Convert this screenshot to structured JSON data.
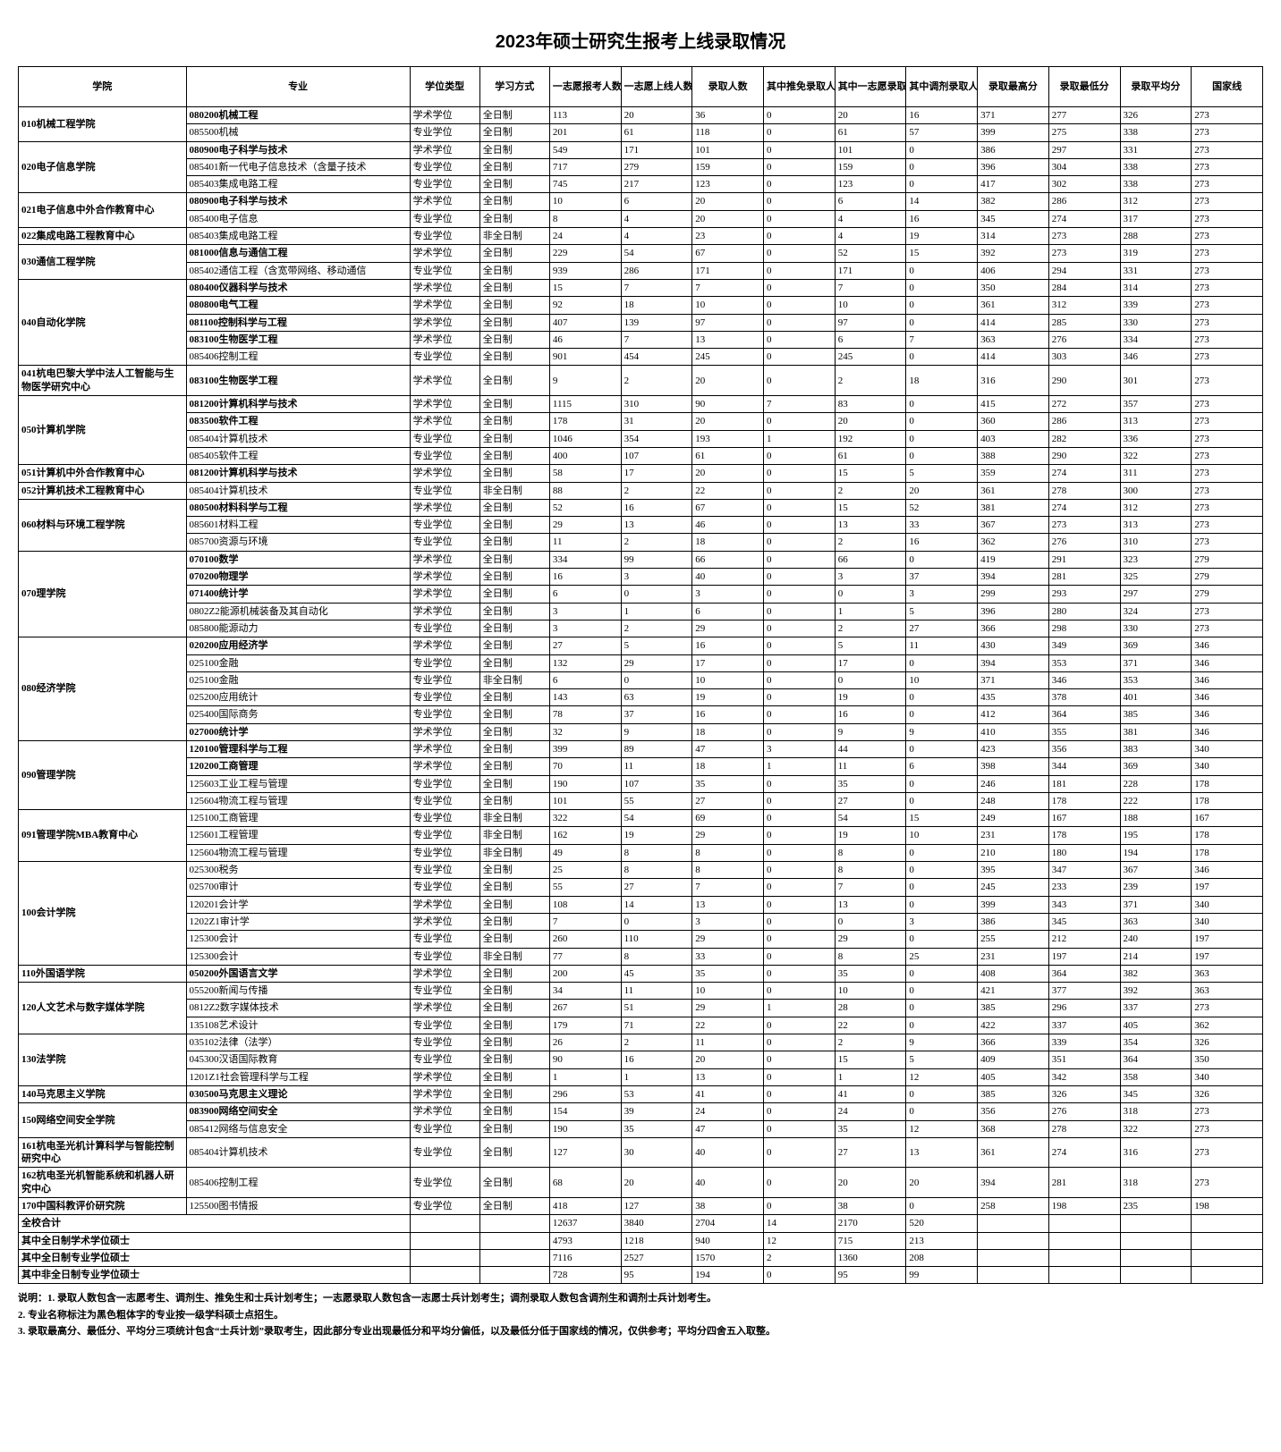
{
  "title": "2023年硕士研究生报考上线录取情况",
  "headers": [
    "学院",
    "专业",
    "学位类型",
    "学习方式",
    "一志愿报考人数",
    "一志愿上线人数",
    "录取人数",
    "其中推免录取人数",
    "其中一志愿录取人数",
    "其中调剂录取人数",
    "录取最高分",
    "录取最低分",
    "录取平均分",
    "国家线"
  ],
  "rows": [
    {
      "college": "010机械工程学院",
      "collegeBold": true,
      "rowspan": 2,
      "major": "080200机械工程",
      "majorBold": true,
      "cells": [
        "学术学位",
        "全日制",
        "113",
        "20",
        "36",
        "0",
        "20",
        "16",
        "371",
        "277",
        "326",
        "273"
      ]
    },
    {
      "major": "085500机械",
      "cells": [
        "专业学位",
        "全日制",
        "201",
        "61",
        "118",
        "0",
        "61",
        "57",
        "399",
        "275",
        "338",
        "273"
      ]
    },
    {
      "college": "020电子信息学院",
      "collegeBold": true,
      "rowspan": 3,
      "major": "080900电子科学与技术",
      "majorBold": true,
      "cells": [
        "学术学位",
        "全日制",
        "549",
        "171",
        "101",
        "0",
        "101",
        "0",
        "386",
        "297",
        "331",
        "273"
      ]
    },
    {
      "major": "085401新一代电子信息技术（含量子技术",
      "cells": [
        "专业学位",
        "全日制",
        "717",
        "279",
        "159",
        "0",
        "159",
        "0",
        "396",
        "304",
        "338",
        "273"
      ]
    },
    {
      "major": "085403集成电路工程",
      "cells": [
        "专业学位",
        "全日制",
        "745",
        "217",
        "123",
        "0",
        "123",
        "0",
        "417",
        "302",
        "338",
        "273"
      ]
    },
    {
      "college": "021电子信息中外合作教育中心",
      "collegeBold": true,
      "rowspan": 2,
      "major": "080900电子科学与技术",
      "majorBold": true,
      "cells": [
        "学术学位",
        "全日制",
        "10",
        "6",
        "20",
        "0",
        "6",
        "14",
        "382",
        "286",
        "312",
        "273"
      ]
    },
    {
      "major": "085400电子信息",
      "cells": [
        "专业学位",
        "全日制",
        "8",
        "4",
        "20",
        "0",
        "4",
        "16",
        "345",
        "274",
        "317",
        "273"
      ]
    },
    {
      "college": "022集成电路工程教育中心",
      "collegeBold": true,
      "rowspan": 1,
      "major": "085403集成电路工程",
      "cells": [
        "专业学位",
        "非全日制",
        "24",
        "4",
        "23",
        "0",
        "4",
        "19",
        "314",
        "273",
        "288",
        "273"
      ]
    },
    {
      "college": "030通信工程学院",
      "collegeBold": true,
      "rowspan": 2,
      "major": "081000信息与通信工程",
      "majorBold": true,
      "cells": [
        "学术学位",
        "全日制",
        "229",
        "54",
        "67",
        "0",
        "52",
        "15",
        "392",
        "273",
        "319",
        "273"
      ]
    },
    {
      "major": "085402通信工程（含宽带网络、移动通信",
      "cells": [
        "专业学位",
        "全日制",
        "939",
        "286",
        "171",
        "0",
        "171",
        "0",
        "406",
        "294",
        "331",
        "273"
      ]
    },
    {
      "college": "040自动化学院",
      "collegeBold": true,
      "rowspan": 5,
      "major": "080400仪器科学与技术",
      "majorBold": true,
      "cells": [
        "学术学位",
        "全日制",
        "15",
        "7",
        "7",
        "0",
        "7",
        "0",
        "350",
        "284",
        "314",
        "273"
      ]
    },
    {
      "major": "080800电气工程",
      "majorBold": true,
      "cells": [
        "学术学位",
        "全日制",
        "92",
        "18",
        "10",
        "0",
        "10",
        "0",
        "361",
        "312",
        "339",
        "273"
      ]
    },
    {
      "major": "081100控制科学与工程",
      "majorBold": true,
      "cells": [
        "学术学位",
        "全日制",
        "407",
        "139",
        "97",
        "0",
        "97",
        "0",
        "414",
        "285",
        "330",
        "273"
      ]
    },
    {
      "major": "083100生物医学工程",
      "majorBold": true,
      "cells": [
        "学术学位",
        "全日制",
        "46",
        "7",
        "13",
        "0",
        "6",
        "7",
        "363",
        "276",
        "334",
        "273"
      ]
    },
    {
      "major": "085406控制工程",
      "cells": [
        "专业学位",
        "全日制",
        "901",
        "454",
        "245",
        "0",
        "245",
        "0",
        "414",
        "303",
        "346",
        "273"
      ]
    },
    {
      "college": "041杭电巴黎大学中法人工智能与生物医学研究中心",
      "collegeBold": true,
      "rowspan": 1,
      "major": "083100生物医学工程",
      "majorBold": true,
      "cells": [
        "学术学位",
        "全日制",
        "9",
        "2",
        "20",
        "0",
        "2",
        "18",
        "316",
        "290",
        "301",
        "273"
      ]
    },
    {
      "college": "050计算机学院",
      "collegeBold": true,
      "rowspan": 4,
      "major": "081200计算机科学与技术",
      "majorBold": true,
      "cells": [
        "学术学位",
        "全日制",
        "1115",
        "310",
        "90",
        "7",
        "83",
        "0",
        "415",
        "272",
        "357",
        "273"
      ]
    },
    {
      "major": "083500软件工程",
      "majorBold": true,
      "cells": [
        "学术学位",
        "全日制",
        "178",
        "31",
        "20",
        "0",
        "20",
        "0",
        "360",
        "286",
        "313",
        "273"
      ]
    },
    {
      "major": "085404计算机技术",
      "cells": [
        "专业学位",
        "全日制",
        "1046",
        "354",
        "193",
        "1",
        "192",
        "0",
        "403",
        "282",
        "336",
        "273"
      ]
    },
    {
      "major": "085405软件工程",
      "cells": [
        "专业学位",
        "全日制",
        "400",
        "107",
        "61",
        "0",
        "61",
        "0",
        "388",
        "290",
        "322",
        "273"
      ]
    },
    {
      "college": "051计算机中外合作教育中心",
      "collegeBold": true,
      "rowspan": 1,
      "major": "081200计算机科学与技术",
      "majorBold": true,
      "cells": [
        "学术学位",
        "全日制",
        "58",
        "17",
        "20",
        "0",
        "15",
        "5",
        "359",
        "274",
        "311",
        "273"
      ]
    },
    {
      "college": "052计算机技术工程教育中心",
      "collegeBold": true,
      "rowspan": 1,
      "major": "085404计算机技术",
      "cells": [
        "专业学位",
        "非全日制",
        "88",
        "2",
        "22",
        "0",
        "2",
        "20",
        "361",
        "278",
        "300",
        "273"
      ]
    },
    {
      "college": "060材料与环境工程学院",
      "collegeBold": true,
      "rowspan": 3,
      "major": "080500材料科学与工程",
      "majorBold": true,
      "cells": [
        "学术学位",
        "全日制",
        "52",
        "16",
        "67",
        "0",
        "15",
        "52",
        "381",
        "274",
        "312",
        "273"
      ]
    },
    {
      "major": "085601材料工程",
      "cells": [
        "专业学位",
        "全日制",
        "29",
        "13",
        "46",
        "0",
        "13",
        "33",
        "367",
        "273",
        "313",
        "273"
      ]
    },
    {
      "major": "085700资源与环境",
      "cells": [
        "专业学位",
        "全日制",
        "11",
        "2",
        "18",
        "0",
        "2",
        "16",
        "362",
        "276",
        "310",
        "273"
      ]
    },
    {
      "college": "070理学院",
      "collegeBold": true,
      "rowspan": 5,
      "major": "070100数学",
      "majorBold": true,
      "cells": [
        "学术学位",
        "全日制",
        "334",
        "99",
        "66",
        "0",
        "66",
        "0",
        "419",
        "291",
        "323",
        "279"
      ]
    },
    {
      "major": "070200物理学",
      "majorBold": true,
      "cells": [
        "学术学位",
        "全日制",
        "16",
        "3",
        "40",
        "0",
        "3",
        "37",
        "394",
        "281",
        "325",
        "279"
      ]
    },
    {
      "major": "071400统计学",
      "majorBold": true,
      "cells": [
        "学术学位",
        "全日制",
        "6",
        "0",
        "3",
        "0",
        "0",
        "3",
        "299",
        "293",
        "297",
        "279"
      ]
    },
    {
      "major": "0802Z2能源机械装备及其自动化",
      "cells": [
        "学术学位",
        "全日制",
        "3",
        "1",
        "6",
        "0",
        "1",
        "5",
        "396",
        "280",
        "324",
        "273"
      ]
    },
    {
      "major": "085800能源动力",
      "cells": [
        "专业学位",
        "全日制",
        "3",
        "2",
        "29",
        "0",
        "2",
        "27",
        "366",
        "298",
        "330",
        "273"
      ]
    },
    {
      "college": "080经济学院",
      "collegeBold": true,
      "rowspan": 6,
      "major": "020200应用经济学",
      "majorBold": true,
      "cells": [
        "学术学位",
        "全日制",
        "27",
        "5",
        "16",
        "0",
        "5",
        "11",
        "430",
        "349",
        "369",
        "346"
      ]
    },
    {
      "major": "025100金融",
      "cells": [
        "专业学位",
        "全日制",
        "132",
        "29",
        "17",
        "0",
        "17",
        "0",
        "394",
        "353",
        "371",
        "346"
      ]
    },
    {
      "major": "025100金融",
      "cells": [
        "专业学位",
        "非全日制",
        "6",
        "0",
        "10",
        "0",
        "0",
        "10",
        "371",
        "346",
        "353",
        "346"
      ]
    },
    {
      "major": "025200应用统计",
      "cells": [
        "专业学位",
        "全日制",
        "143",
        "63",
        "19",
        "0",
        "19",
        "0",
        "435",
        "378",
        "401",
        "346"
      ]
    },
    {
      "major": "025400国际商务",
      "cells": [
        "专业学位",
        "全日制",
        "78",
        "37",
        "16",
        "0",
        "16",
        "0",
        "412",
        "364",
        "385",
        "346"
      ]
    },
    {
      "major": "027000统计学",
      "majorBold": true,
      "cells": [
        "学术学位",
        "全日制",
        "32",
        "9",
        "18",
        "0",
        "9",
        "9",
        "410",
        "355",
        "381",
        "346"
      ]
    },
    {
      "college": "090管理学院",
      "collegeBold": true,
      "rowspan": 4,
      "major": "120100管理科学与工程",
      "majorBold": true,
      "cells": [
        "学术学位",
        "全日制",
        "399",
        "89",
        "47",
        "3",
        "44",
        "0",
        "423",
        "356",
        "383",
        "340"
      ]
    },
    {
      "major": "120200工商管理",
      "majorBold": true,
      "cells": [
        "学术学位",
        "全日制",
        "70",
        "11",
        "18",
        "1",
        "11",
        "6",
        "398",
        "344",
        "369",
        "340"
      ]
    },
    {
      "major": "125603工业工程与管理",
      "cells": [
        "专业学位",
        "全日制",
        "190",
        "107",
        "35",
        "0",
        "35",
        "0",
        "246",
        "181",
        "228",
        "178"
      ]
    },
    {
      "major": "125604物流工程与管理",
      "cells": [
        "专业学位",
        "全日制",
        "101",
        "55",
        "27",
        "0",
        "27",
        "0",
        "248",
        "178",
        "222",
        "178"
      ]
    },
    {
      "college": "091管理学院MBA教育中心",
      "collegeBold": true,
      "rowspan": 3,
      "major": "125100工商管理",
      "cells": [
        "专业学位",
        "非全日制",
        "322",
        "54",
        "69",
        "0",
        "54",
        "15",
        "249",
        "167",
        "188",
        "167"
      ]
    },
    {
      "major": "125601工程管理",
      "cells": [
        "专业学位",
        "非全日制",
        "162",
        "19",
        "29",
        "0",
        "19",
        "10",
        "231",
        "178",
        "195",
        "178"
      ]
    },
    {
      "major": "125604物流工程与管理",
      "cells": [
        "专业学位",
        "非全日制",
        "49",
        "8",
        "8",
        "0",
        "8",
        "0",
        "210",
        "180",
        "194",
        "178"
      ]
    },
    {
      "college": "100会计学院",
      "collegeBold": true,
      "rowspan": 6,
      "major": "025300税务",
      "cells": [
        "专业学位",
        "全日制",
        "25",
        "8",
        "8",
        "0",
        "8",
        "0",
        "395",
        "347",
        "367",
        "346"
      ]
    },
    {
      "major": "025700审计",
      "cells": [
        "专业学位",
        "全日制",
        "55",
        "27",
        "7",
        "0",
        "7",
        "0",
        "245",
        "233",
        "239",
        "197"
      ]
    },
    {
      "major": "120201会计学",
      "cells": [
        "学术学位",
        "全日制",
        "108",
        "14",
        "13",
        "0",
        "13",
        "0",
        "399",
        "343",
        "371",
        "340"
      ]
    },
    {
      "major": "1202Z1审计学",
      "cells": [
        "学术学位",
        "全日制",
        "7",
        "0",
        "3",
        "0",
        "0",
        "3",
        "386",
        "345",
        "363",
        "340"
      ]
    },
    {
      "major": "125300会计",
      "cells": [
        "专业学位",
        "全日制",
        "260",
        "110",
        "29",
        "0",
        "29",
        "0",
        "255",
        "212",
        "240",
        "197"
      ]
    },
    {
      "major": "125300会计",
      "cells": [
        "专业学位",
        "非全日制",
        "77",
        "8",
        "33",
        "0",
        "8",
        "25",
        "231",
        "197",
        "214",
        "197"
      ]
    },
    {
      "college": "110外国语学院",
      "collegeBold": true,
      "rowspan": 1,
      "major": "050200外国语言文学",
      "majorBold": true,
      "cells": [
        "学术学位",
        "全日制",
        "200",
        "45",
        "35",
        "0",
        "35",
        "0",
        "408",
        "364",
        "382",
        "363"
      ]
    },
    {
      "college": "120人文艺术与数字媒体学院",
      "collegeBold": true,
      "rowspan": 3,
      "major": "055200新闻与传播",
      "cells": [
        "专业学位",
        "全日制",
        "34",
        "11",
        "10",
        "0",
        "10",
        "0",
        "421",
        "377",
        "392",
        "363"
      ]
    },
    {
      "major": "0812Z2数字媒体技术",
      "cells": [
        "学术学位",
        "全日制",
        "267",
        "51",
        "29",
        "1",
        "28",
        "0",
        "385",
        "296",
        "337",
        "273"
      ]
    },
    {
      "major": "135108艺术设计",
      "cells": [
        "专业学位",
        "全日制",
        "179",
        "71",
        "22",
        "0",
        "22",
        "0",
        "422",
        "337",
        "405",
        "362"
      ]
    },
    {
      "college": "130法学院",
      "collegeBold": true,
      "rowspan": 3,
      "major": "035102法律（法学）",
      "cells": [
        "专业学位",
        "全日制",
        "26",
        "2",
        "11",
        "0",
        "2",
        "9",
        "366",
        "339",
        "354",
        "326"
      ]
    },
    {
      "major": "045300汉语国际教育",
      "cells": [
        "专业学位",
        "全日制",
        "90",
        "16",
        "20",
        "0",
        "15",
        "5",
        "409",
        "351",
        "364",
        "350"
      ]
    },
    {
      "major": "1201Z1社会管理科学与工程",
      "cells": [
        "学术学位",
        "全日制",
        "1",
        "1",
        "13",
        "0",
        "1",
        "12",
        "405",
        "342",
        "358",
        "340"
      ]
    },
    {
      "college": "140马克思主义学院",
      "collegeBold": true,
      "rowspan": 1,
      "major": "030500马克思主义理论",
      "majorBold": true,
      "cells": [
        "学术学位",
        "全日制",
        "296",
        "53",
        "41",
        "0",
        "41",
        "0",
        "385",
        "326",
        "345",
        "326"
      ]
    },
    {
      "college": "150网络空间安全学院",
      "collegeBold": true,
      "rowspan": 2,
      "major": "083900网络空间安全",
      "majorBold": true,
      "cells": [
        "学术学位",
        "全日制",
        "154",
        "39",
        "24",
        "0",
        "24",
        "0",
        "356",
        "276",
        "318",
        "273"
      ]
    },
    {
      "major": "085412网络与信息安全",
      "cells": [
        "专业学位",
        "全日制",
        "190",
        "35",
        "47",
        "0",
        "35",
        "12",
        "368",
        "278",
        "322",
        "273"
      ]
    },
    {
      "college": "161杭电圣光机计算科学与智能控制研究中心",
      "collegeBold": true,
      "rowspan": 1,
      "major": "085404计算机技术",
      "cells": [
        "专业学位",
        "全日制",
        "127",
        "30",
        "40",
        "0",
        "27",
        "13",
        "361",
        "274",
        "316",
        "273"
      ]
    },
    {
      "college": "162杭电圣光机智能系统和机器人研究中心",
      "collegeBold": true,
      "rowspan": 1,
      "major": "085406控制工程",
      "cells": [
        "专业学位",
        "全日制",
        "68",
        "20",
        "40",
        "0",
        "20",
        "20",
        "394",
        "281",
        "318",
        "273"
      ]
    },
    {
      "college": "170中国科教评价研究院",
      "collegeBold": true,
      "rowspan": 1,
      "major": "125500图书情报",
      "cells": [
        "专业学位",
        "全日制",
        "418",
        "127",
        "38",
        "0",
        "38",
        "0",
        "258",
        "198",
        "235",
        "198"
      ]
    }
  ],
  "summary": [
    {
      "label": "全校合计",
      "cells": [
        "",
        "",
        "12637",
        "3840",
        "2704",
        "14",
        "2170",
        "520",
        "",
        "",
        "",
        ""
      ]
    },
    {
      "label": "其中全日制学术学位硕士",
      "cells": [
        "",
        "",
        "4793",
        "1218",
        "940",
        "12",
        "715",
        "213",
        "",
        "",
        "",
        ""
      ]
    },
    {
      "label": "其中全日制专业学位硕士",
      "cells": [
        "",
        "",
        "7116",
        "2527",
        "1570",
        "2",
        "1360",
        "208",
        "",
        "",
        "",
        ""
      ]
    },
    {
      "label": "其中非全日制专业学位硕士",
      "cells": [
        "",
        "",
        "728",
        "95",
        "194",
        "0",
        "95",
        "99",
        "",
        "",
        "",
        ""
      ]
    }
  ],
  "notes": [
    "说明：1. 录取人数包含一志愿考生、调剂生、推免生和士兵计划考生；一志愿录取人数包含一志愿士兵计划考生；调剂录取人数包含调剂生和调剂士兵计划考生。",
    "2. 专业名称标注为黑色粗体字的专业按一级学科硕士点招生。",
    "3. 录取最高分、最低分、平均分三项统计包含“士兵计划”录取考生，因此部分专业出现最低分和平均分偏低，以及最低分低于国家线的情况，仅供参考；平均分四舍五入取整。"
  ]
}
